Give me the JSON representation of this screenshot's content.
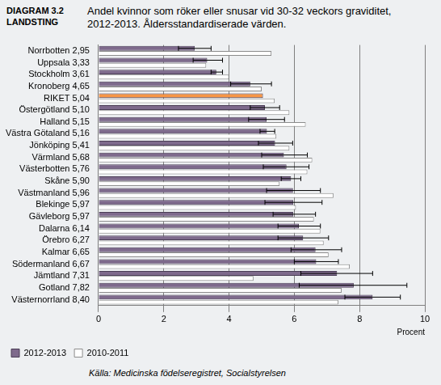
{
  "chart_data": {
    "type": "bar",
    "orientation": "horizontal",
    "header": [
      "DIAGRAM 3.2",
      "LANDSTING"
    ],
    "title": [
      "Andel kvinnor som röker eller snusar vid 30-32 veckors graviditet,",
      "2012-2013.  Åldersstandardiserade värden."
    ],
    "source": "Källa: Medicinska födelseregistret, Socialstyrelsen",
    "x_label": "Procent",
    "categories": [
      "Norrbotten 2,95",
      "Uppsala 3,33",
      "Stockholm 3,61",
      "Kronoberg 4,65",
      "RIKET 5,04",
      "Östergötland 5,10",
      "Halland 5,15",
      "Västra Götaland 5,16",
      "Jönköping 5,41",
      "Värmland 5,68",
      "Västerbotten 5,76",
      "Skåne 5,90",
      "Västmanland 5,96",
      "Blekinge 5,97",
      "Gävleborg 5,97",
      "Dalarna 6,14",
      "Örebro 6,27",
      "Kalmar 6,65",
      "Södermanland 6,67",
      "Jämtland 7,31",
      "Gotland 7,82",
      "Västernorrland 8,40"
    ],
    "series": [
      {
        "name": "2012-2013",
        "colors": [
          "#7e6a8c",
          "#7e6a8c",
          "#7e6a8c",
          "#7e6a8c",
          "#f79646",
          "#7e6a8c",
          "#7e6a8c",
          "#7e6a8c",
          "#7e6a8c",
          "#7e6a8c",
          "#7e6a8c",
          "#7e6a8c",
          "#7e6a8c",
          "#7e6a8c",
          "#7e6a8c",
          "#7e6a8c",
          "#7e6a8c",
          "#7e6a8c",
          "#7e6a8c",
          "#7e6a8c",
          "#7e6a8c",
          "#7e6a8c"
        ],
        "values": [
          2.95,
          3.33,
          3.61,
          4.65,
          5.04,
          5.1,
          5.15,
          5.16,
          5.41,
          5.68,
          5.76,
          5.9,
          5.96,
          5.97,
          5.97,
          6.14,
          6.27,
          6.65,
          6.67,
          7.31,
          7.82,
          8.4
        ],
        "error_bars": [
          [
            2.45,
            3.45
          ],
          [
            2.9,
            3.8
          ],
          [
            3.45,
            3.8
          ],
          [
            4.05,
            5.3
          ],
          null,
          [
            4.65,
            5.55
          ],
          [
            4.6,
            5.7
          ],
          [
            4.95,
            5.4
          ],
          [
            4.9,
            5.95
          ],
          [
            5.0,
            6.4
          ],
          [
            5.05,
            6.45
          ],
          [
            5.6,
            6.2
          ],
          [
            5.15,
            6.8
          ],
          [
            5.1,
            6.85
          ],
          [
            5.35,
            6.65
          ],
          [
            5.5,
            6.8
          ],
          [
            5.5,
            7.05
          ],
          [
            5.9,
            7.45
          ],
          [
            6.0,
            7.35
          ],
          [
            6.2,
            8.4
          ],
          [
            6.15,
            9.45
          ],
          [
            7.55,
            9.25
          ]
        ]
      },
      {
        "name": "2010-2011",
        "color": "#ffffff",
        "values": [
          5.3,
          3.3,
          4.0,
          5.0,
          5.4,
          5.85,
          6.35,
          5.45,
          5.85,
          6.55,
          6.4,
          5.55,
          7.2,
          6.05,
          6.6,
          6.8,
          6.9,
          7.05,
          7.7,
          4.75,
          7.45,
          7.35
        ]
      }
    ],
    "xlim": [
      0,
      10
    ],
    "xticks": [
      0,
      2,
      4,
      6,
      8,
      10
    ],
    "grid": true,
    "legend": "bottom"
  }
}
